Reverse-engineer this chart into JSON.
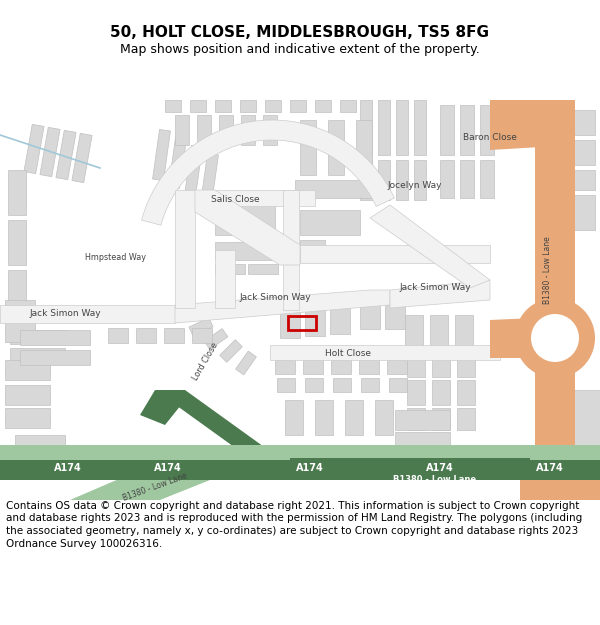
{
  "title": "50, HOLT CLOSE, MIDDLESBROUGH, TS5 8FG",
  "subtitle": "Map shows position and indicative extent of the property.",
  "footer": "Contains OS data © Crown copyright and database right 2021. This information is subject to Crown copyright and database rights 2023 and is reproduced with the permission of HM Land Registry. The polygons (including the associated geometry, namely x, y co-ordinates) are subject to Crown copyright and database rights 2023 Ordnance Survey 100026316.",
  "bg_color": "#ffffff",
  "building_fill": "#d8d8d8",
  "building_edge": "#c0c0c0",
  "road_fill": "#f2f2f2",
  "road_edge": "#cccccc",
  "green_dark": "#4a7a4e",
  "green_mid": "#6aaa6e",
  "green_light": "#a0c8a0",
  "orange": "#e8a878",
  "red": "#cc0000",
  "blue": "#a0c8d8",
  "title_fs": 11,
  "sub_fs": 9,
  "footer_fs": 7.5,
  "label_fs": 6.5
}
